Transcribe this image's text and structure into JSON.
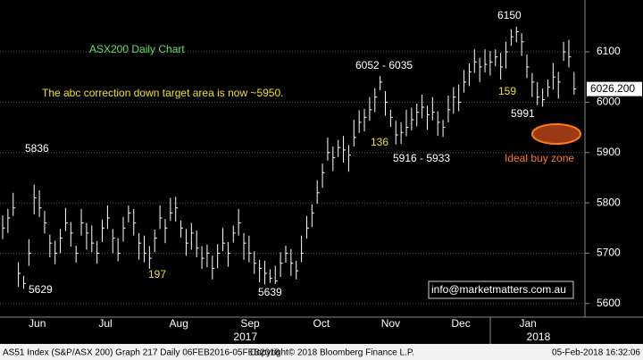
{
  "chart_data": {
    "type": "ohlc",
    "high": [
      5775,
      5788,
      5820,
      5682,
      5655,
      5728,
      5836,
      5825,
      5784,
      5737,
      5725,
      5748,
      5790,
      5762,
      5715,
      5788,
      5760,
      5755,
      5724,
      5767,
      5795,
      5748,
      5730,
      5772,
      5795,
      5788,
      5740,
      5735,
      5714,
      5747,
      5795,
      5768,
      5810,
      5812,
      5765,
      5748,
      5760,
      5745,
      5714,
      5717,
      5695,
      5718,
      5750,
      5722,
      5755,
      5788,
      5740,
      5735,
      5704,
      5687,
      5685,
      5668,
      5675,
      5702,
      5715,
      5708,
      5685,
      5735,
      5774,
      5797,
      5845,
      5878,
      5930,
      5912,
      5925,
      5933,
      5915,
      5965,
      5984,
      5987,
      6010,
      6028,
      6052,
      6022,
      5985,
      5963,
      5960,
      5985,
      5989,
      5997,
      6015,
      5993,
      6010,
      5982,
      5965,
      6013,
      6030,
      6035,
      6064,
      6077,
      6105,
      6088,
      6105,
      6102,
      6105,
      6098,
      6120,
      6145,
      6150,
      6137,
      6095,
      6058,
      6040,
      6027,
      6045,
      6078,
      6060,
      6120,
      6124,
      6060
    ],
    "low": [
      5728,
      5740,
      5774,
      5633,
      5629,
      5675,
      5777,
      5772,
      5739,
      5692,
      5678,
      5700,
      5744,
      5713,
      5681,
      5735,
      5707,
      5702,
      5679,
      5722,
      5748,
      5700,
      5684,
      5723,
      5761,
      5735,
      5687,
      5682,
      5669,
      5702,
      5748,
      5720,
      5764,
      5763,
      5731,
      5695,
      5707,
      5692,
      5669,
      5672,
      5648,
      5670,
      5704,
      5673,
      5721,
      5735,
      5687,
      5682,
      5659,
      5642,
      5638,
      5641,
      5639,
      5653,
      5681,
      5655,
      5648,
      5682,
      5729,
      5752,
      5798,
      5830,
      5884,
      5863,
      5891,
      5880,
      5862,
      5912,
      5939,
      5942,
      5963,
      5980,
      6024,
      5973,
      5951,
      5916,
      5917,
      5932,
      5944,
      5952,
      5968,
      5945,
      5964,
      5933,
      5931,
      5960,
      5977,
      5982,
      6019,
      6032,
      6058,
      6040,
      6059,
      6053,
      6071,
      6045,
      6067,
      6112,
      6119,
      6092,
      6048,
      6010,
      5994,
      5991,
      6011,
      6025,
      6007,
      6082,
      6069,
      6015
    ],
    "close": [
      5750,
      5770,
      5790,
      5660,
      5640,
      5700,
      5810,
      5790,
      5760,
      5720,
      5700,
      5730,
      5760,
      5740,
      5700,
      5760,
      5740,
      5720,
      5700,
      5750,
      5770,
      5730,
      5700,
      5750,
      5780,
      5760,
      5720,
      5700,
      5690,
      5730,
      5770,
      5750,
      5780,
      5790,
      5750,
      5720,
      5740,
      5710,
      5690,
      5700,
      5670,
      5700,
      5720,
      5700,
      5740,
      5760,
      5720,
      5700,
      5680,
      5670,
      5660,
      5650,
      5645,
      5680,
      5700,
      5680,
      5665,
      5700,
      5750,
      5780,
      5820,
      5860,
      5900,
      5890,
      5910,
      5905,
      5895,
      5930,
      5960,
      5970,
      5985,
      6010,
      6040,
      6000,
      5970,
      5935,
      5940,
      5950,
      5965,
      5980,
      5990,
      5975,
      5980,
      5960,
      5950,
      5985,
      6010,
      6000,
      6040,
      6060,
      6080,
      6070,
      6075,
      6080,
      6090,
      6070,
      6100,
      6130,
      6140,
      6120,
      6070,
      6040,
      6010,
      6005,
      6030,
      6050,
      6040,
      6100,
      6090,
      6026.2
    ],
    "color": "#ffffff",
    "ylim": [
      5573,
      6203
    ],
    "yticks": [
      5600,
      5700,
      5800,
      5900,
      6000,
      6100
    ],
    "grid": true,
    "last_price": {
      "value": 6026.2,
      "label": "6026.200"
    },
    "xticks": [
      {
        "value": 6.6,
        "label": "Jun"
      },
      {
        "value": 19.6,
        "label": "Jul"
      },
      {
        "value": 33.6,
        "label": "Aug"
      },
      {
        "value": 47.2,
        "label": "Sep"
      },
      {
        "value": 60.8,
        "label": "Oct"
      },
      {
        "value": 74.0,
        "label": "Nov"
      },
      {
        "value": 87.4,
        "label": "Dec"
      },
      {
        "value": 100.2,
        "label": "Jan"
      }
    ],
    "years": [
      {
        "value": 46.3,
        "label": "2017"
      },
      {
        "value": 102.2,
        "label": "2018"
      }
    ],
    "annotations": [
      {
        "text": "ASX200 Daily Chart",
        "color": "#66dd66"
      },
      {
        "text": "The abc correction down target area is now ~5950.",
        "color": "#f0e020"
      },
      {
        "text": "5836",
        "color": "#ffffff"
      },
      {
        "text": "5629",
        "color": "#ffffff"
      },
      {
        "text": "197",
        "color": "#f0e020"
      },
      {
        "text": "5639",
        "color": "#ffffff"
      },
      {
        "text": "6052 - 6035",
        "color": "#ffffff"
      },
      {
        "text": "136",
        "color": "#f0e020"
      },
      {
        "text": "5916 - 5933",
        "color": "#ffffff"
      },
      {
        "text": "6150",
        "color": "#ffffff"
      },
      {
        "text": "159",
        "color": "#f0e020"
      },
      {
        "text": "5991",
        "color": "#ffffff"
      },
      {
        "text": "Ideal buy zone",
        "color": "#ff7a1a"
      },
      {
        "text": "info@marketmatters.com.au",
        "color": "#ffffff"
      }
    ],
    "footer": {
      "left": "AS51 Index (S&P/ASX 200) Graph 217  Daily 06FEB2016-05FEB2018",
      "center": "Copyright© 2018 Bloomberg Finance L.P.",
      "right": "05-Feb-2018 16:32:06"
    }
  }
}
